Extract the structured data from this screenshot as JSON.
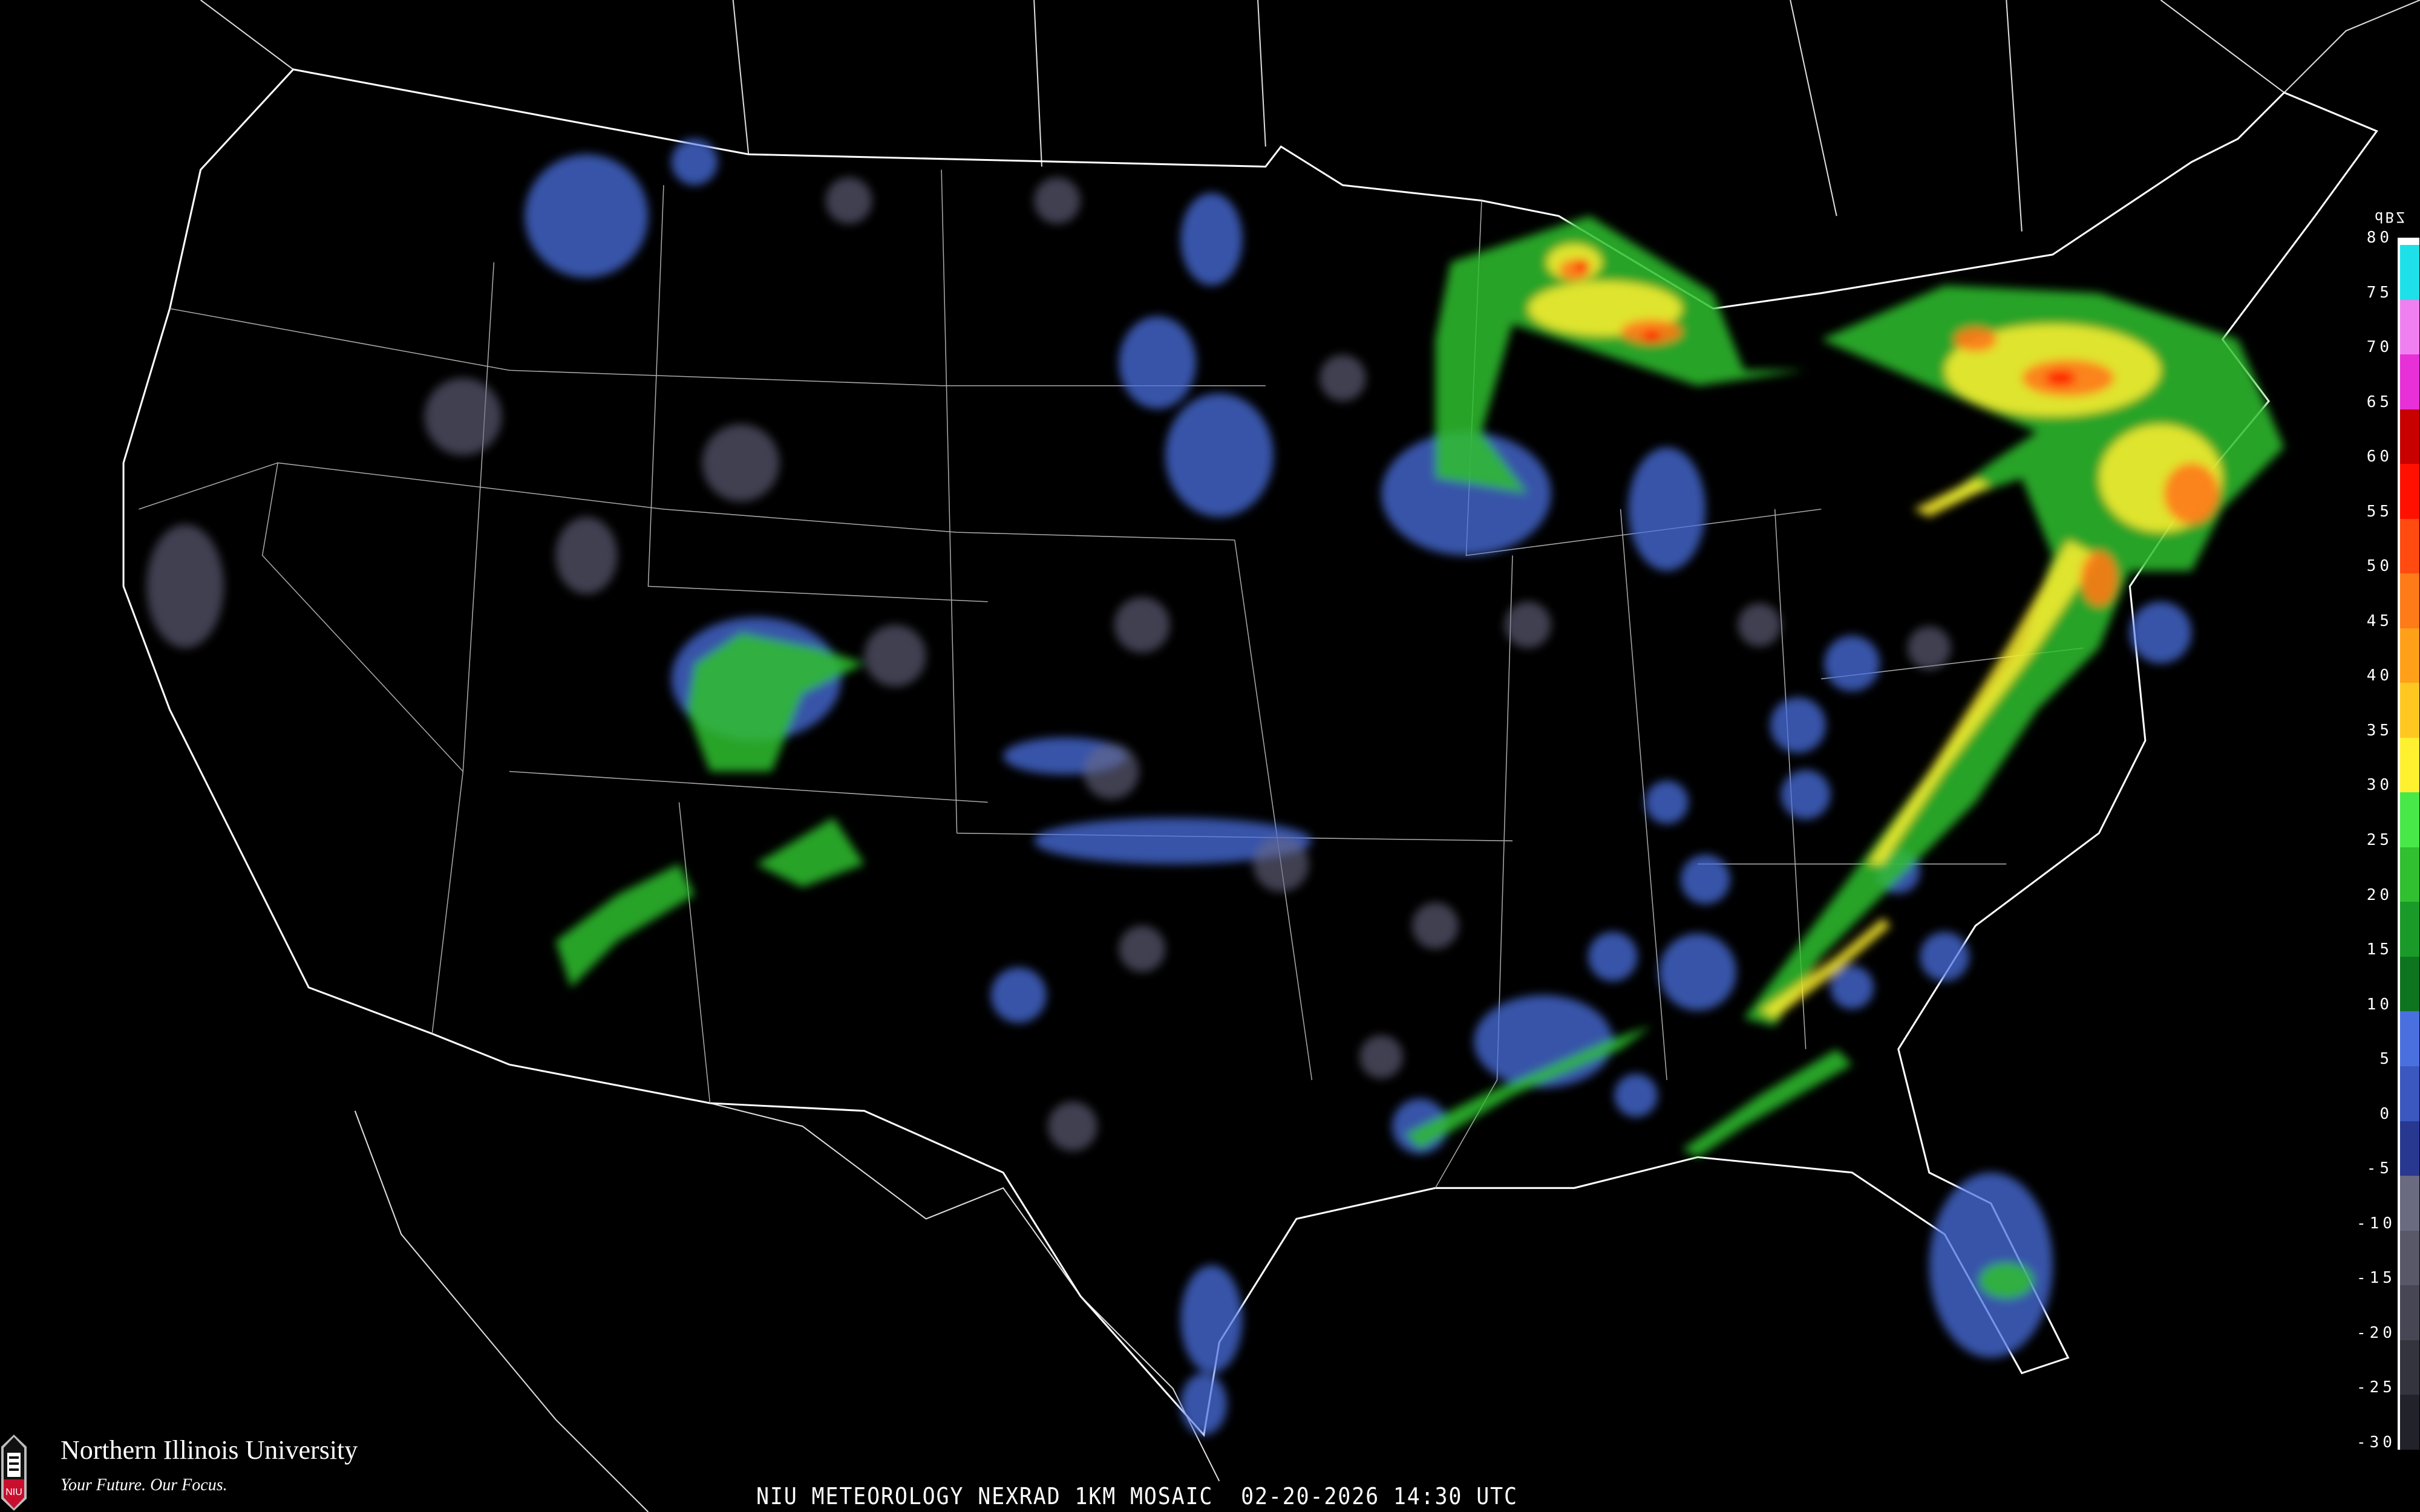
{
  "map": {
    "title": "NIU METEOROLOGY NEXRAD 1KM MOSAIC",
    "date": "02-20-2026",
    "time": "14:30 UTC",
    "region": "Contiguous United States",
    "background_color": "#000000",
    "boundary_color": "#ffffff",
    "road_color": "#8b4a1e"
  },
  "logo": {
    "name": "Northern Illinois University",
    "tagline": "Your Future. Our Focus.",
    "mark": "NIU",
    "brand_color": "#c8102e"
  },
  "legend": {
    "unit": "dBZ",
    "labels": [
      "80",
      "75",
      "70",
      "65",
      "60",
      "55",
      "50",
      "45",
      "40",
      "35",
      "30",
      "25",
      "20",
      "15",
      "10",
      "5",
      "0",
      "-5",
      "-10",
      "-15",
      "-20",
      "-25",
      "-30"
    ],
    "bands": [
      "#1ee0e8",
      "#f080f0",
      "#e830d8",
      "#c80000",
      "#ff1000",
      "#ff4a10",
      "#ff7a18",
      "#ffa018",
      "#ffc820",
      "#fff030",
      "#48e848",
      "#30c030",
      "#1a9a28",
      "#0e7420",
      "#4a70e0",
      "#3a58c0",
      "#283890",
      "#6a6a80",
      "#585868",
      "#464654",
      "#34343e",
      "#22222a"
    ]
  }
}
